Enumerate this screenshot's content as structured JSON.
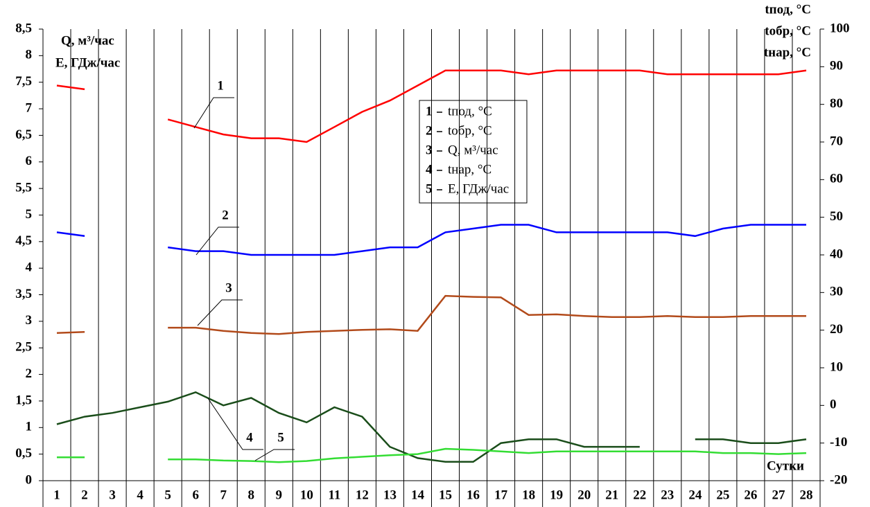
{
  "chart_data": {
    "type": "line",
    "categories": [
      "1",
      "2",
      "3",
      "4",
      "5",
      "6",
      "7",
      "8",
      "9",
      "10",
      "11",
      "12",
      "13",
      "14",
      "15",
      "16",
      "17",
      "18",
      "19",
      "20",
      "21",
      "22",
      "23",
      "24",
      "25",
      "26",
      "27",
      "28"
    ],
    "x_label": "Сутки",
    "ylim": [
      0,
      8.5
    ],
    "yticks": [
      0,
      {
        "value": 0.5,
        "label": "0,5"
      },
      1,
      {
        "value": 1.5,
        "label": "1,5"
      },
      2,
      {
        "value": 2.5,
        "label": "2,5"
      },
      3,
      {
        "value": 3.5,
        "label": "3,5"
      },
      4,
      {
        "value": 4.5,
        "label": "4,5"
      },
      5,
      {
        "value": 5.5,
        "label": "5,5"
      },
      6,
      {
        "value": 6.5,
        "label": "6,5"
      },
      7,
      {
        "value": 7.5,
        "label": "7,5"
      },
      8,
      {
        "value": 8.5,
        "label": "8,5"
      }
    ],
    "y2lim": [
      -20,
      100
    ],
    "y2ticks": [
      -20,
      -10,
      0,
      10,
      20,
      30,
      40,
      50,
      60,
      70,
      80,
      90,
      100
    ],
    "grid": "vertical",
    "series": [
      {
        "label": "1",
        "name": "tпод, °C",
        "color": "#ff0000",
        "axis": "y2",
        "values": [
          85,
          84,
          null,
          null,
          76,
          74,
          72,
          71,
          71,
          70,
          74,
          78,
          81,
          85,
          89,
          89,
          89,
          88,
          89,
          89,
          89,
          89,
          88,
          88,
          88,
          88,
          88,
          89
        ]
      },
      {
        "label": "2",
        "name": "tобр, °C",
        "color": "#0000ff",
        "axis": "y2",
        "values": [
          46,
          45,
          null,
          null,
          42,
          41,
          41,
          40,
          40,
          40,
          40,
          41,
          42,
          42,
          46,
          47,
          48,
          48,
          46,
          46,
          46,
          46,
          46,
          45,
          47,
          48,
          48,
          48
        ]
      },
      {
        "label": "3",
        "name": "Q, м³/час",
        "color": "#b24a1a",
        "values": [
          2.78,
          2.8,
          null,
          null,
          2.88,
          2.88,
          2.82,
          2.78,
          2.76,
          2.8,
          2.82,
          2.84,
          2.85,
          2.82,
          3.48,
          3.46,
          3.45,
          3.12,
          3.13,
          3.1,
          3.08,
          3.08,
          3.1,
          3.08,
          3.08,
          3.1,
          3.1,
          3.1
        ]
      },
      {
        "label": "4",
        "name": "tнар, °C",
        "color": "#1a4d1a",
        "axis": "y2",
        "values": [
          -5,
          -3,
          -2,
          -0.5,
          1,
          3.5,
          0,
          2,
          -2,
          -4.5,
          -0.5,
          -3,
          -11,
          -14,
          -15,
          -15,
          -10,
          -9,
          -9,
          -11,
          -11,
          -11,
          null,
          -9,
          -9,
          -10,
          -10,
          -9
        ]
      },
      {
        "label": "5",
        "name": "E, ГДж/час",
        "color": "#33dd33",
        "values": [
          0.44,
          0.44,
          null,
          null,
          0.4,
          0.4,
          0.38,
          0.37,
          0.35,
          0.37,
          0.42,
          0.45,
          0.48,
          0.5,
          0.6,
          0.58,
          0.55,
          0.52,
          0.55,
          0.55,
          0.55,
          0.55,
          0.55,
          0.55,
          0.52,
          0.52,
          0.5,
          0.52
        ]
      }
    ]
  }
}
